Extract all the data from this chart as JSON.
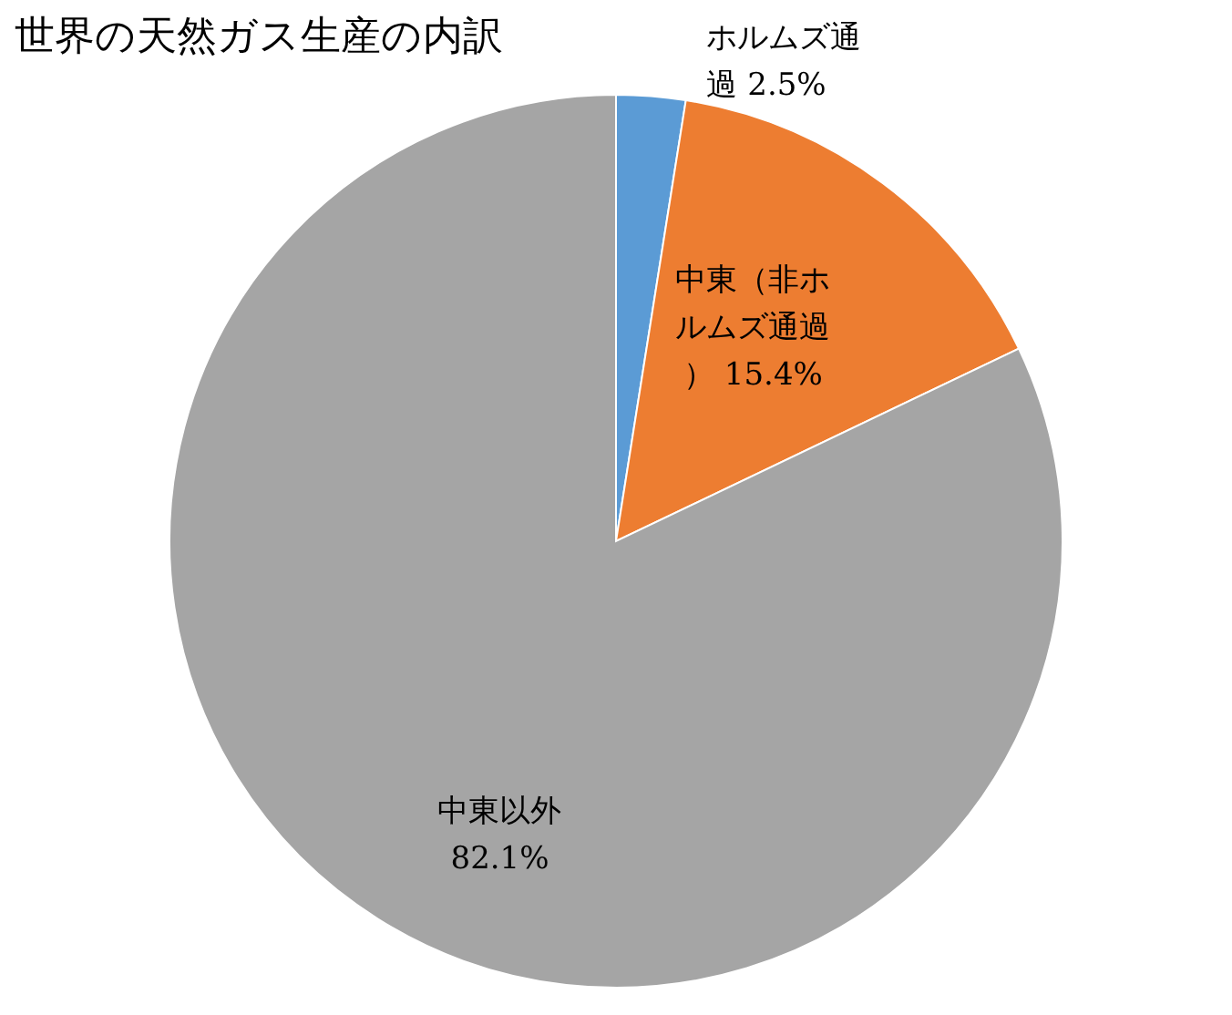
{
  "chart_data": {
    "type": "pie",
    "title": "世界の天然ガス生産の内訳",
    "categories": [
      "ホルムズ通過",
      "中東（非ホルムズ通過）",
      "中東以外"
    ],
    "values": [
      2.5,
      15.4,
      82.1
    ],
    "colors": [
      "#5b9bd5",
      "#ed7d31",
      "#a5a5a5"
    ],
    "value_labels": [
      "2.5%",
      "15.4%",
      "82.1%"
    ],
    "legend": false
  }
}
